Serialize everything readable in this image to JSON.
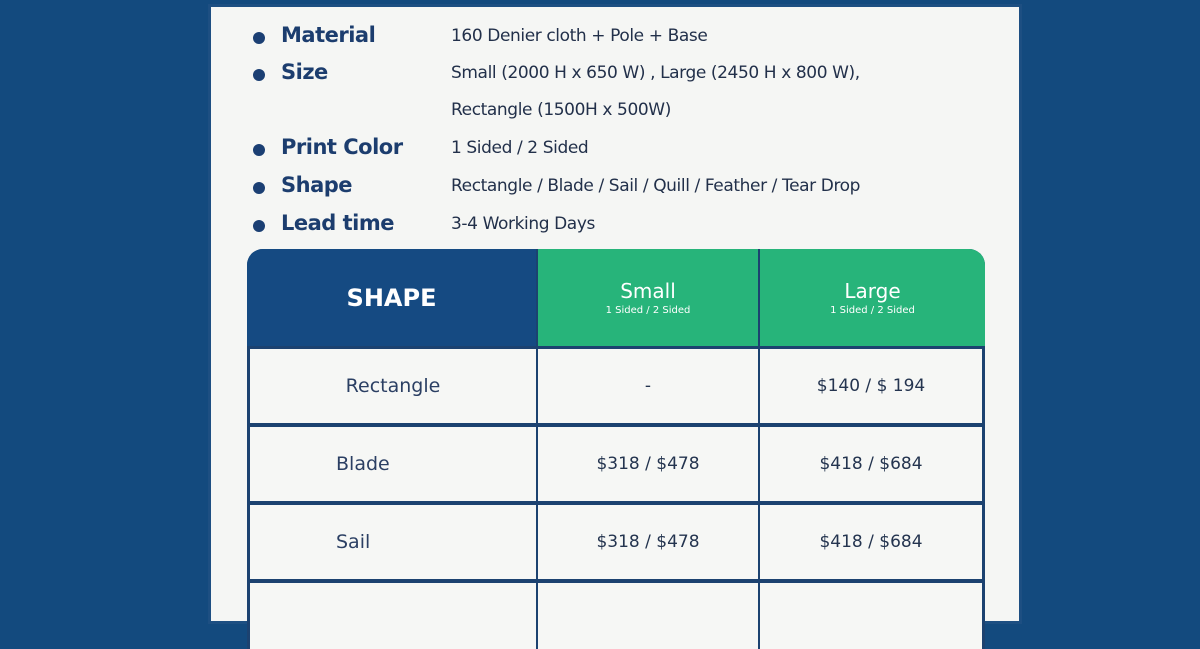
{
  "specs": [
    {
      "label": "Material",
      "value": "160 Denier cloth + Pole + Base"
    },
    {
      "label": "Size",
      "value": "Small (2000 H x 650 W) , Large (2450 H x 800 W),",
      "value2": "Rectangle (1500H x 500W)"
    },
    {
      "label": "Print Color",
      "value": "1 Sided / 2 Sided"
    },
    {
      "label": "Shape",
      "value": "Rectangle / Blade / Sail / Quill / Feather / Tear Drop"
    },
    {
      "label": "Lead time",
      "value": "3-4 Working Days"
    }
  ],
  "table": {
    "header": {
      "shape": "SHAPE",
      "small": "Small",
      "small_sub": "1 Sided / 2 Sided",
      "large": "Large",
      "large_sub": "1 Sided / 2 Sided"
    },
    "rows": [
      {
        "shape": "Rectangle",
        "small": "-",
        "large": "$140 / $ 194"
      },
      {
        "shape": "Blade",
        "small": "$318 / $478",
        "large": "$418 / $684"
      },
      {
        "shape": "Sail",
        "small": "$318 / $478",
        "large": "$418 / $684"
      }
    ]
  },
  "colors": {
    "background": "#134a7e",
    "header_blue": "#154a82",
    "header_green": "#27b47a"
  }
}
